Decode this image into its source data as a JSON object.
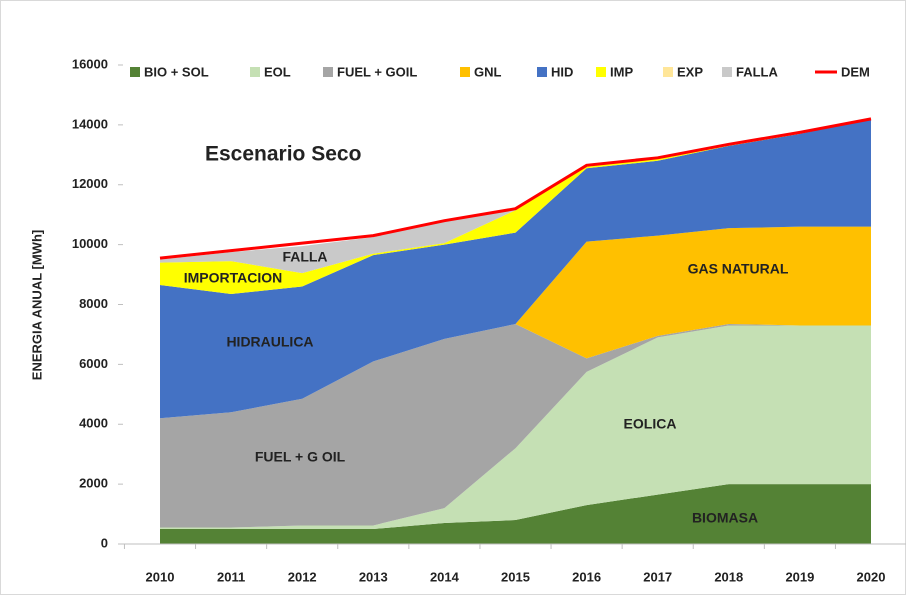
{
  "chart_data": {
    "type": "area",
    "stacked": true,
    "title": "Escenario Seco",
    "y_label": "ENERGIA ANUAL [MWh]",
    "categories": [
      "2010",
      "2011",
      "2012",
      "2013",
      "2014",
      "2015",
      "2016",
      "2017",
      "2018",
      "2019",
      "2020"
    ],
    "series": [
      {
        "name": "BIO + SOL",
        "color": "#548235",
        "values": [
          500,
          500,
          500,
          500,
          700,
          800,
          1300,
          1650,
          2000,
          2000,
          2000
        ]
      },
      {
        "name": "EOL",
        "color": "#c5e0b4",
        "values": [
          50,
          50,
          120,
          120,
          500,
          2400,
          4450,
          5250,
          5300,
          5300,
          5300
        ]
      },
      {
        "name": "FUEL + GOIL",
        "color": "#a5a5a5",
        "values": [
          3650,
          3850,
          4230,
          5480,
          5650,
          4150,
          450,
          50,
          50,
          0,
          0
        ]
      },
      {
        "name": "GNL",
        "color": "#ffc000",
        "values": [
          0,
          0,
          0,
          0,
          0,
          0,
          3900,
          3350,
          3200,
          3300,
          3300
        ]
      },
      {
        "name": "HID",
        "color": "#4472c4",
        "values": [
          4450,
          3950,
          3750,
          3550,
          3150,
          3050,
          2450,
          2500,
          2750,
          3100,
          3600
        ]
      },
      {
        "name": "IMP",
        "color": "#ffff00",
        "values": [
          750,
          1100,
          450,
          50,
          50,
          750,
          50,
          100,
          50,
          0,
          0
        ]
      },
      {
        "name": "EXP",
        "color": "#ffe699",
        "values": [
          0,
          0,
          0,
          0,
          0,
          0,
          0,
          0,
          0,
          0,
          0
        ]
      },
      {
        "name": "FALLA",
        "color": "#c9c9c9",
        "values": [
          100,
          300,
          900,
          550,
          750,
          50,
          0,
          0,
          0,
          0,
          0
        ]
      },
      {
        "name": "DEM",
        "type": "line",
        "color": "#ff0000",
        "values": [
          9550,
          9800,
          10050,
          10300,
          10800,
          11200,
          12650,
          12900,
          13350,
          13750,
          14200
        ]
      }
    ],
    "annotations": [
      "FALLA",
      "IMPORTACION",
      "HIDRAULICA",
      "FUEL + G OIL",
      "EOLICA",
      "GAS NATURAL",
      "BIOMASA"
    ],
    "ylim": [
      0,
      16000
    ],
    "yticks": [
      0,
      2000,
      4000,
      6000,
      8000,
      10000,
      12000,
      14000,
      16000
    ],
    "grid": false,
    "legend": "top"
  }
}
